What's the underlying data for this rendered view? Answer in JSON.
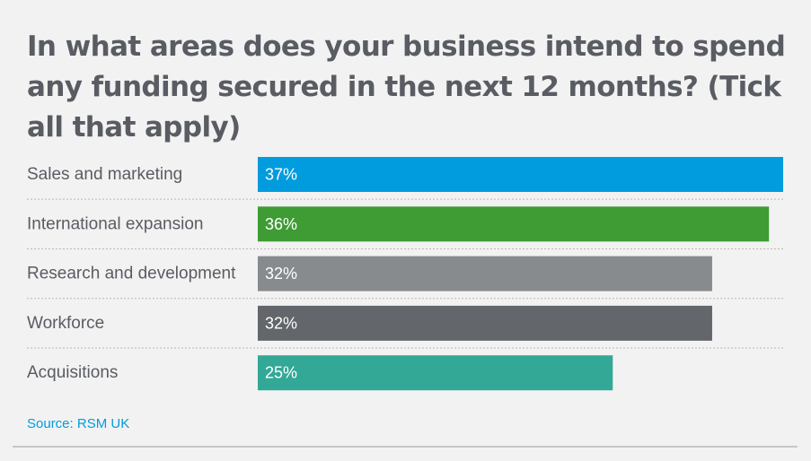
{
  "chart_data": {
    "type": "bar",
    "orientation": "horizontal",
    "title": "In what areas does your business intend to spend any funding secured in the next 12 months? (Tick all that apply)",
    "categories": [
      "Sales and marketing",
      "International expansion",
      "Research and development",
      "Workforce",
      "Acquisitions"
    ],
    "values": [
      37,
      36,
      32,
      32,
      25
    ],
    "value_labels": [
      "37%",
      "36%",
      "32%",
      "32%",
      "25%"
    ],
    "colors": [
      "#009cde",
      "#3f9c35",
      "#888b8d",
      "#63666a",
      "#33a897"
    ],
    "xlim": [
      0,
      37
    ],
    "grid": false,
    "legend": "none"
  },
  "source": "Source: RSM UK"
}
